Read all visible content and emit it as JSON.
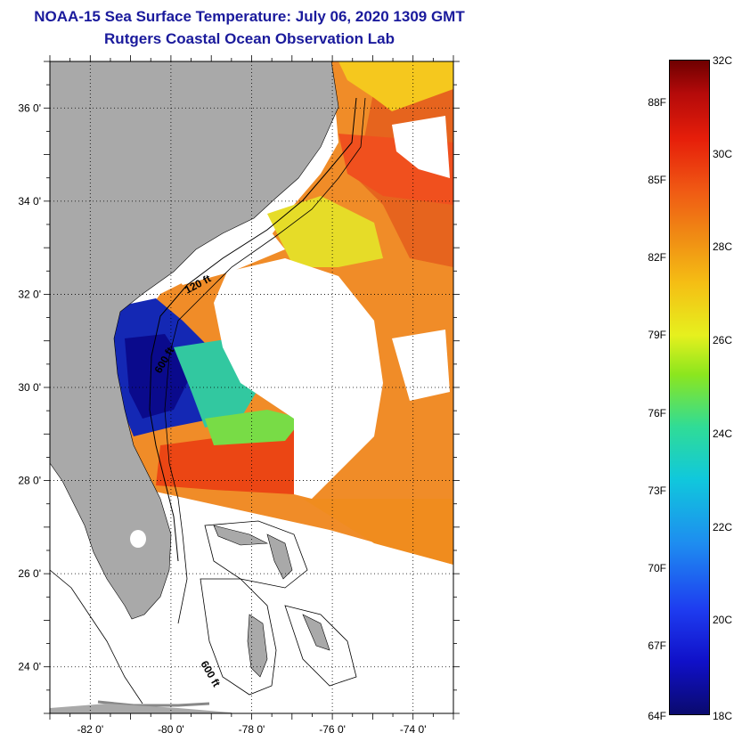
{
  "title_line1": "NOAA-15 Sea Surface Temperature:  July 06, 2020 1309 GMT",
  "title_line2": "Rutgers Coastal Ocean Observation Lab",
  "map": {
    "lon_range": [
      -83,
      -73
    ],
    "lat_range": [
      23,
      37
    ],
    "x_tick_labels": [
      "-82 0'",
      "-80 0'",
      "-78 0'",
      "-76 0'",
      "-74 0'"
    ],
    "y_tick_labels": [
      "36 0'",
      "34 0'",
      "32 0'",
      "30 0'",
      "28 0'",
      "26 0'",
      "24 0'"
    ],
    "isobath_labels": [
      "120 ft",
      "600 ft",
      "600 ft"
    ],
    "land_color": "#a9a9a9",
    "cloud_color": "#ffffff",
    "grid": "dotted"
  },
  "colorbar": {
    "celsius_labels": [
      "32C",
      "30C",
      "28C",
      "26C",
      "24C",
      "22C",
      "20C",
      "18C"
    ],
    "fahrenheit_labels": [
      "88F",
      "85F",
      "82F",
      "79F",
      "76F",
      "73F",
      "70F",
      "67F",
      "64F"
    ],
    "range_c": [
      18,
      32
    ],
    "colors": [
      "#0a0a6e",
      "#1010c8",
      "#1e8cf0",
      "#10c8dc",
      "#8ce61e",
      "#e6f01e",
      "#f08c14",
      "#e61e0a",
      "#6e0000"
    ]
  }
}
